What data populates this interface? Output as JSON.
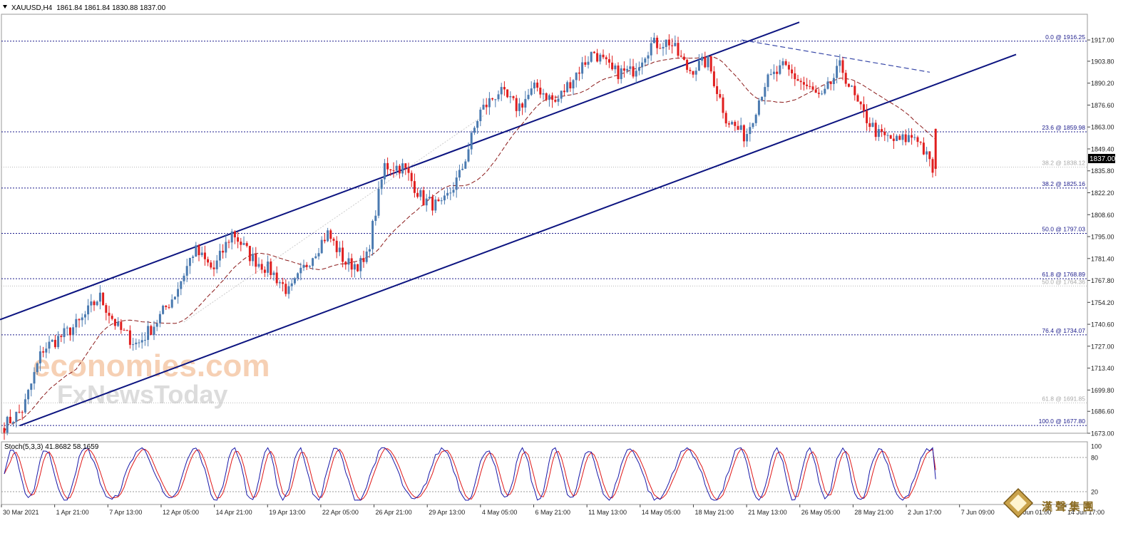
{
  "header": {
    "symbol": "XAUUSD,H4",
    "ohlc": "1861.84 1861.84 1830.88 1837.00"
  },
  "current_price_label": "1837.00",
  "watermark": {
    "line1": "economies.com",
    "line2": "FxNewsToday"
  },
  "logo": {
    "text": "漢 聲 集 團"
  },
  "indicator": {
    "label": "Stoch(5,3,3) 41.8682 58.1659",
    "levels": [
      80,
      20
    ],
    "ticks": [
      "100",
      "80",
      "20"
    ]
  },
  "chart_data": {
    "type": "candlestick",
    "symbol": "XAUUSD",
    "timeframe": "H4",
    "price_axis_ticks": [
      "1917.00",
      "1903.80",
      "1890.20",
      "1876.60",
      "1863.00",
      "1849.40",
      "1835.80",
      "1822.20",
      "1808.60",
      "1795.00",
      "1781.40",
      "1767.80",
      "1754.20",
      "1740.60",
      "1727.00",
      "1713.40",
      "1699.80",
      "1686.60",
      "1673.00"
    ],
    "time_axis_labels": [
      "30 Mar 2021",
      "1 Apr 21:00",
      "7 Apr 13:00",
      "12 Apr 05:00",
      "14 Apr 21:00",
      "19 Apr 13:00",
      "22 Apr 05:00",
      "26 Apr 21:00",
      "29 Apr 13:00",
      "4 May 05:00",
      "6 May 21:00",
      "11 May 13:00",
      "14 May 05:00",
      "18 May 21:00",
      "21 May 13:00",
      "26 May 05:00",
      "28 May 21:00",
      "2 Jun 17:00",
      "7 Jun 09:00",
      "10 Jun 01:00",
      "14 Jun 17:00"
    ],
    "fib_levels_primary": [
      {
        "label": "0.0 @ 1916.25",
        "price": 1916.25
      },
      {
        "label": "23.6 @ 1859.98",
        "price": 1859.98
      },
      {
        "label": "38.2 @ 1825.16",
        "price": 1825.16
      },
      {
        "label": "50.0 @ 1797.03",
        "price": 1797.03
      },
      {
        "label": "61.8 @ 1768.89",
        "price": 1768.89
      },
      {
        "label": "76.4 @ 1734.07",
        "price": 1734.07
      },
      {
        "label": "100.0 @ 1677.80",
        "price": 1677.8
      }
    ],
    "fib_levels_secondary": [
      {
        "label": "38.2 @ 1838.12",
        "price": 1838.12
      },
      {
        "label": "50.0 @ 1764.36",
        "price": 1764.36
      },
      {
        "label": "61.8 @ 1691.85",
        "price": 1691.85
      }
    ],
    "channel": {
      "upper": [
        {
          "t": 0,
          "p": 1743.5
        },
        {
          "t": 1121,
          "p": 1928
        }
      ],
      "lower": [
        {
          "t": 28,
          "p": 1677.8
        },
        {
          "t": 1425,
          "p": 1908
        }
      ]
    },
    "resistance_trendline": [
      {
        "t": 1040,
        "p": 1917
      },
      {
        "t": 1304,
        "p": 1897
      }
    ],
    "key_prices": [
      1677.8,
      1688,
      1725,
      1733,
      1742,
      1758,
      1738,
      1728,
      1742,
      1760,
      1787,
      1774,
      1798,
      1782,
      1774,
      1760,
      1780,
      1797,
      1778,
      1778,
      1839,
      1838,
      1818,
      1813,
      1834,
      1872,
      1885,
      1875,
      1888,
      1878,
      1895,
      1910,
      1897,
      1897,
      1914,
      1916,
      1898,
      1904,
      1868,
      1857,
      1890,
      1900,
      1890,
      1880,
      1901,
      1874,
      1858,
      1854,
      1858,
      1832
    ],
    "colors": {
      "bull": "#4a7ab0",
      "bear": "#e01e1e",
      "channel": "#0c1480",
      "ma": "#8b1a1a",
      "fib": "#1c1c8c",
      "stoch_main": "#1818a8",
      "stoch_signal": "#e01818"
    }
  }
}
